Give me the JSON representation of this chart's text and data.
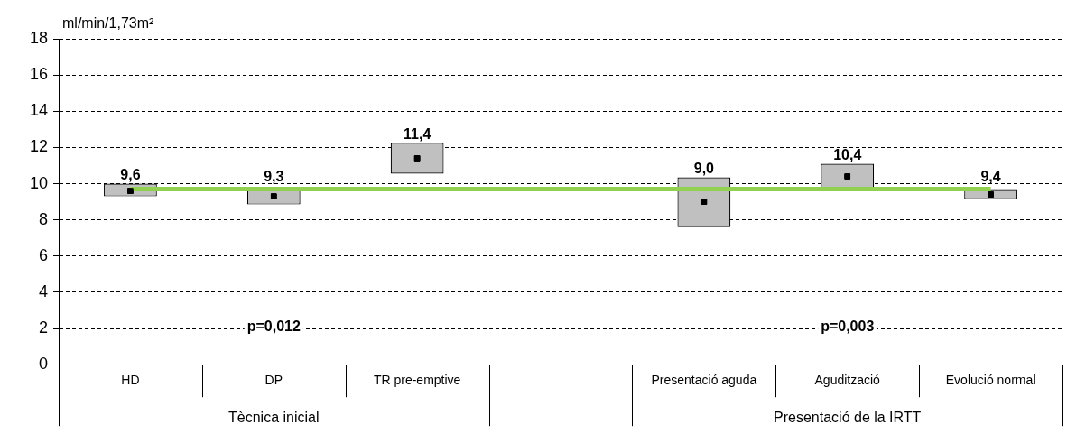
{
  "chart_data": {
    "type": "bar",
    "ylabel": "ml/min/1,73m²",
    "categories": [
      "HD",
      "DP",
      "TR pre-emptive",
      null,
      "Presentació aguda",
      "Agudització",
      "Evolució normal"
    ],
    "series": [
      {
        "color": "#c0c0c0",
        "base": [
          9.3,
          8.85,
          10.55,
          null,
          7.6,
          9.7,
          9.15
        ],
        "values": [
          0.7,
          0.85,
          1.7,
          null,
          2.75,
          1.4,
          0.5
        ]
      },
      {
        "type": "scatter",
        "color": "#000000",
        "values": [
          9.6,
          9.3,
          11.4,
          null,
          9.0,
          10.4,
          9.4
        ],
        "value_labels": [
          "9,6",
          "9,3",
          "11,4",
          null,
          "9,0",
          "10,4",
          "9,4"
        ]
      }
    ],
    "ylim": [
      0,
      18
    ],
    "yticks": [
      0,
      2,
      4,
      6,
      8,
      10,
      12,
      14,
      16,
      18
    ],
    "grid": "y",
    "legend": false,
    "marker": "square",
    "ref_lines": [
      {
        "axis": "y",
        "value": 9.7,
        "color": "#92d050"
      }
    ],
    "annotations": [
      "p=0,012",
      "p=0,003",
      "Tècnica inicial",
      "Presentació de la IRTT"
    ]
  }
}
